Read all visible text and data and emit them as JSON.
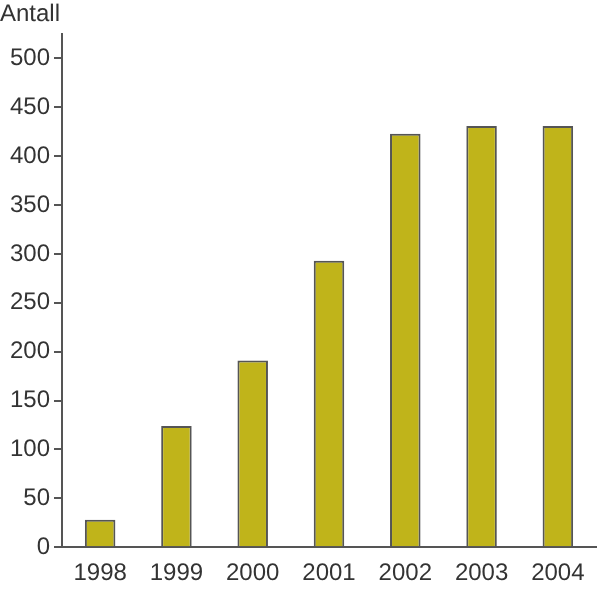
{
  "chart_data": {
    "type": "bar",
    "ylabel": "Antall",
    "categories": [
      "1998",
      "1999",
      "2000",
      "2001",
      "2002",
      "2003",
      "2004"
    ],
    "values": [
      28,
      124,
      191,
      293,
      423,
      431,
      431
    ],
    "color": "#c0b41a",
    "ylim": [
      0,
      525
    ],
    "yticks": [
      0,
      50,
      100,
      150,
      200,
      250,
      300,
      350,
      400,
      450,
      500
    ],
    "grid": false,
    "legend": false
  }
}
